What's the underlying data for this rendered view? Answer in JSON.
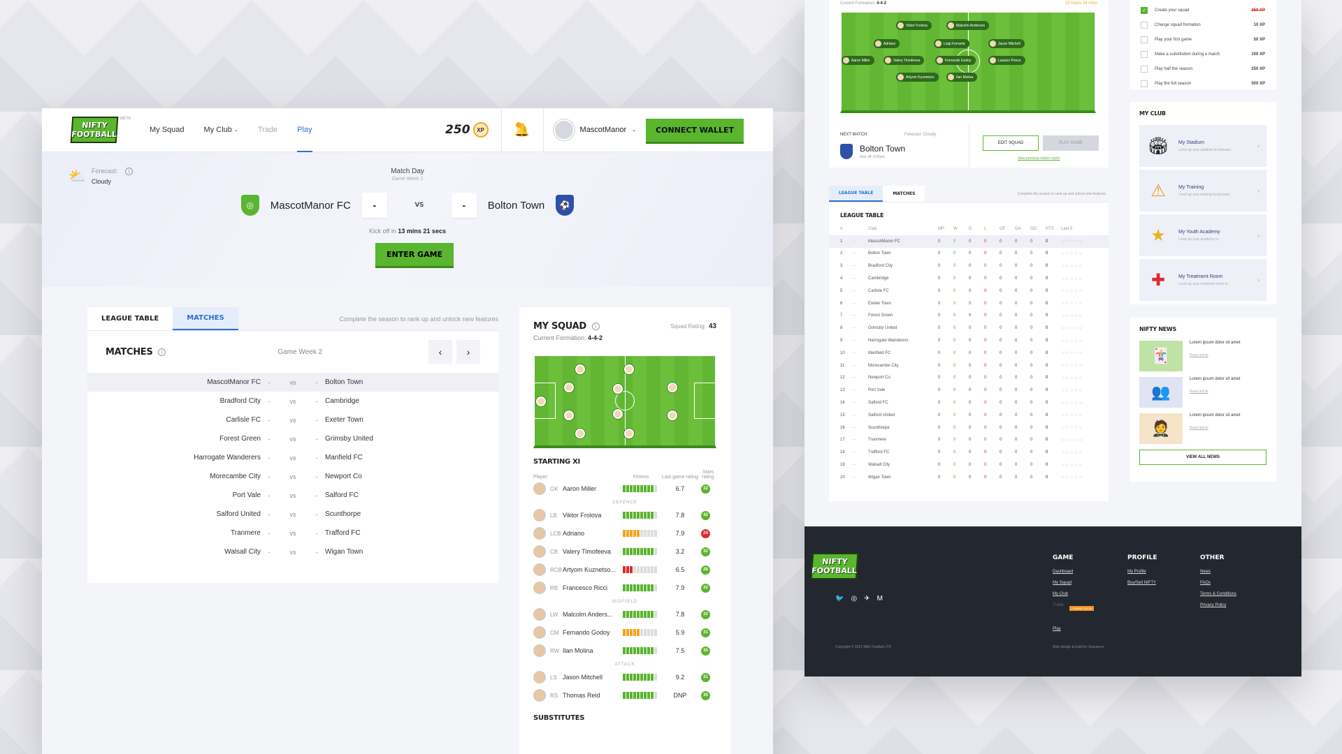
{
  "header": {
    "logo_line1": "NIFTY",
    "logo_line2": "FOOTBALL",
    "beta": "BETA",
    "nav": [
      "My Squad",
      "My Club",
      "Trade",
      "Play"
    ],
    "xp_value": "250",
    "xp_unit": "XP",
    "user": "MascotManor",
    "wallet_button": "CONNECT WALLET"
  },
  "match": {
    "forecast_label": "Forecast:",
    "forecast_value": "Cloudy",
    "title": "Match Day",
    "week": "Game Week 2",
    "home": "MascotManor FC",
    "away": "Bolton Town",
    "home_score": "-",
    "away_score": "-",
    "vs": "VS",
    "kickoff_prefix": "Kick off in",
    "kickoff_time": "13 mins 21 secs",
    "enter_button": "ENTER GAME"
  },
  "matches": {
    "tab1": "LEAGUE TABLE",
    "tab2": "MATCHES",
    "note": "Complete the season to rank up and unlock new features",
    "title": "MATCHES",
    "week": "Game Week 2",
    "rows": [
      [
        "MascotManor FC",
        "-",
        "vs",
        "-",
        "Bolton Town"
      ],
      [
        "Bradford City",
        "-",
        "vs",
        "-",
        "Cambridge"
      ],
      [
        "Carlisle FC",
        "-",
        "vs",
        "-",
        "Exeter Town"
      ],
      [
        "Forest Green",
        "-",
        "vs",
        "-",
        "Grimsby United"
      ],
      [
        "Harrogate Wanderers",
        "-",
        "vs",
        "-",
        "Manfield FC"
      ],
      [
        "Morecambe City",
        "-",
        "vs",
        "-",
        "Newport Co"
      ],
      [
        "Port Vale",
        "-",
        "vs",
        "-",
        "Salford FC"
      ],
      [
        "Salford United",
        "-",
        "vs",
        "-",
        "Scunthorpe"
      ],
      [
        "Tranmere",
        "-",
        "vs",
        "-",
        "Trafford FC"
      ],
      [
        "Walsall City",
        "-",
        "vs",
        "-",
        "Wigan Town"
      ]
    ]
  },
  "squad": {
    "title": "MY SQUAD",
    "rating_label": "Squad Rating:",
    "rating": "43",
    "formation_label": "Current Formation:",
    "formation": "4-4-2",
    "xi_title": "STARTING XI",
    "col_player": "Player",
    "col_fitness": "Fitness",
    "col_last": "Last game rating",
    "col_stats": "Stats rating",
    "gk": [
      {
        "pos": "GK",
        "name": "Aaron Miller",
        "fit": 9,
        "color": "#5ab52f",
        "last": "6.7",
        "stat": "32",
        "sc": "#5ab52f"
      }
    ],
    "def_label": "DEFENCE",
    "def": [
      {
        "pos": "LB",
        "name": "Viktor Frolova",
        "fit": 9,
        "color": "#5ab52f",
        "last": "7.8",
        "stat": "42",
        "sc": "#5ab52f"
      },
      {
        "pos": "LCB",
        "name": "Adriano",
        "fit": 5,
        "color": "#f3a521",
        "last": "7.9",
        "stat": "24",
        "sc": "#e02b2b"
      },
      {
        "pos": "CB",
        "name": "Valery Timofeeva",
        "fit": 9,
        "color": "#5ab52f",
        "last": "3.2",
        "stat": "32",
        "sc": "#5ab52f"
      },
      {
        "pos": "RCB",
        "name": "Artyom Kuznetso...",
        "fit": 3,
        "color": "#e02b2b",
        "last": "6.5",
        "stat": "28",
        "sc": "#5ab52f"
      },
      {
        "pos": "RB",
        "name": "Francesco Ricci",
        "fit": 9,
        "color": "#5ab52f",
        "last": "7.9",
        "stat": "32",
        "sc": "#5ab52f"
      }
    ],
    "mid_label": "MIDFIELD",
    "mid": [
      {
        "pos": "LW",
        "name": "Malcolm Anders...",
        "fit": 9,
        "color": "#5ab52f",
        "last": "7.8",
        "stat": "32",
        "sc": "#5ab52f"
      },
      {
        "pos": "CM",
        "name": "Fernando Godoy",
        "fit": 5,
        "color": "#f3a521",
        "last": "5.9",
        "stat": "31",
        "sc": "#5ab52f"
      },
      {
        "pos": "RW",
        "name": "Ilan Molina",
        "fit": 9,
        "color": "#5ab52f",
        "last": "7.5",
        "stat": "35",
        "sc": "#5ab52f"
      }
    ],
    "att_label": "ATTACK",
    "att": [
      {
        "pos": "LS",
        "name": "Jason Mitchell",
        "fit": 9,
        "color": "#5ab52f",
        "last": "9.2",
        "stat": "31",
        "sc": "#5ab52f"
      },
      {
        "pos": "RS",
        "name": "Thomas Reid",
        "fit": 9,
        "color": "#5ab52f",
        "last": "DNP",
        "stat": "35",
        "sc": "#5ab52f"
      }
    ],
    "subs_title": "SUBSTITUTES"
  },
  "right": {
    "formation_label": "Current Formation:",
    "formation": "4-4-2",
    "timer": "15 hours 24 mins",
    "pitch_names": [
      "Viktor Frolova",
      "Malcolm Anderson",
      "Adriano",
      "Luigi Ferrante",
      "Jason Mitchell",
      "Aaron Miller",
      "Valery Timofeeva",
      "Fernando Godoy",
      "Lautaro Ponce",
      "Artyom Kuznetsov",
      "Ilan Molina"
    ],
    "next_match": "NEXT MATCH",
    "forecast": "Forecast: Cloudy",
    "next_team": "Bolton Town",
    "kickoff": "Kick off: 6:00pm",
    "edit_squad": "EDIT SQUAD",
    "play_game": "PLAY GAME",
    "prev_report": "View previous match report",
    "tab1": "LEAGUE TABLE",
    "tab2": "MATCHES",
    "note": "Complete the season to rank up and unlock new features",
    "lt_title": "LEAGUE TABLE",
    "lt_head": [
      "#",
      "Club",
      "MP",
      "W",
      "D",
      "L",
      "GF",
      "GA",
      "GD",
      "PTS",
      "Last 5"
    ],
    "lt_clubs": [
      "MascotManor FC",
      "Bolton Town",
      "Bradford City",
      "Cambridge",
      "Carlisle FC",
      "Exeter Town",
      "Forest Green",
      "Grimsby United",
      "Harrogate Wanderers",
      "Manfield FC",
      "Morecambe City",
      "Newport Co",
      "Port Vale",
      "Salford FC",
      "Salford United",
      "Scunthorpe",
      "Tranmere",
      "Trafford FC",
      "Walsall City",
      "Wigan Town"
    ],
    "tasks": [
      [
        "Create your squad",
        "250 XP"
      ],
      [
        "Change squad formation",
        "10 XP"
      ],
      [
        "Play your first game",
        "50 XP"
      ],
      [
        "Make a substitution during a match",
        "100 XP"
      ],
      [
        "Play half the season",
        "250 XP"
      ],
      [
        "Play the full season",
        "500 XP"
      ]
    ],
    "myclub": "MY CLUB",
    "clubs": [
      [
        "My Stadium",
        "Level up your stadium to increase"
      ],
      [
        "My Training",
        "Level up your training to increase"
      ],
      [
        "My Youth Academy",
        "Level up your academy to"
      ],
      [
        "My Treatment Room",
        "Level up your treatment room to"
      ]
    ],
    "news_title": "NIFTY NEWS",
    "news": [
      "Lorem ipsum dolor sit amet",
      "Lorem ipsum dolor sit amet",
      "Lorem ipsum dolor sit amet"
    ],
    "read": "Read article",
    "view_all": "VIEW ALL NEWS",
    "footer": {
      "game": "GAME",
      "game_links": [
        "Dashboard",
        "My Squad",
        "My Club",
        "Trade",
        "Play"
      ],
      "coming": "COMING SOON",
      "profile": "PROFILE",
      "profile_links": [
        "My Profile",
        "Buy/Sell NIFTY"
      ],
      "other": "OTHER",
      "other_links": [
        "News",
        "FAQs",
        "Terms & Conditions",
        "Privacy Policy"
      ],
      "copyright": "Copyright © 2021 Nifty Football LTD",
      "credit": "Web design & build by Sequence"
    }
  }
}
